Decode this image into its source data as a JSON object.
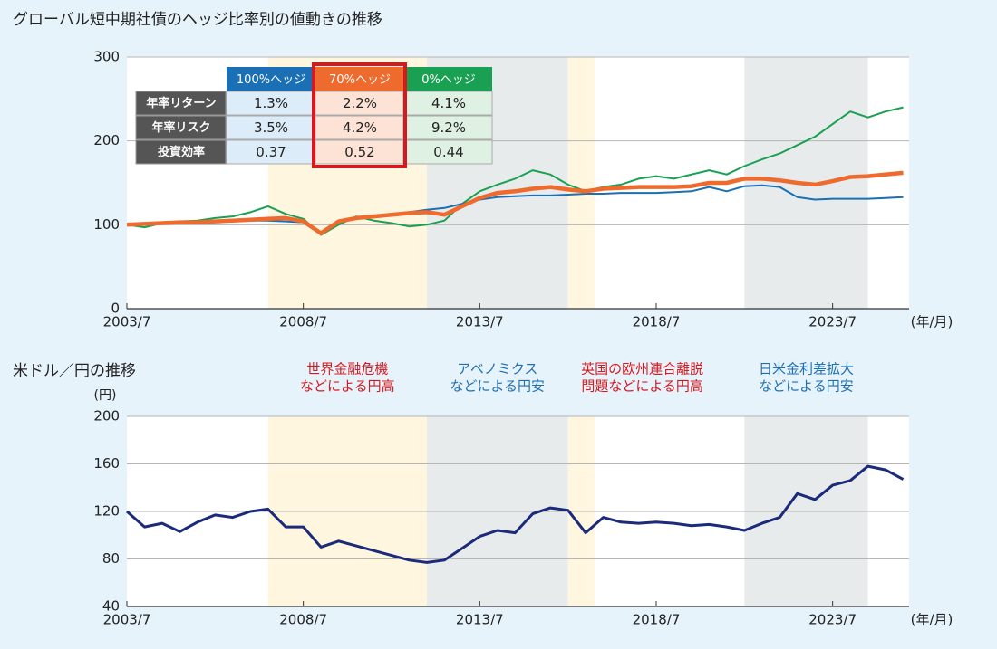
{
  "chart_data": [
    {
      "type": "line",
      "title": "グローバル短中期社債のヘッジ比率別の値動きの推移",
      "x": [
        "2003/7",
        "2004/1",
        "2004/7",
        "2005/1",
        "2005/7",
        "2006/1",
        "2006/7",
        "2007/1",
        "2007/7",
        "2008/1",
        "2008/7",
        "2009/1",
        "2009/7",
        "2010/1",
        "2010/7",
        "2011/1",
        "2011/7",
        "2012/1",
        "2012/7",
        "2013/1",
        "2013/7",
        "2014/1",
        "2014/7",
        "2015/1",
        "2015/7",
        "2016/1",
        "2016/7",
        "2017/1",
        "2017/7",
        "2018/1",
        "2018/7",
        "2019/1",
        "2019/7",
        "2020/1",
        "2020/7",
        "2021/1",
        "2021/7",
        "2022/1",
        "2022/7",
        "2023/1",
        "2023/7",
        "2024/1",
        "2024/7",
        "2025/1",
        "2025/7"
      ],
      "xlim": [
        "2003/7",
        "2025/9"
      ],
      "xticks": [
        "2003/7",
        "2008/7",
        "2013/7",
        "2018/7",
        "2023/7"
      ],
      "x_unit": "(年/月)",
      "ylim": [
        0,
        300
      ],
      "yticks": [
        0,
        100,
        200,
        300
      ],
      "grid": true,
      "series": [
        {
          "name": "100%ヘッジ",
          "color": "#1a6fb5",
          "values": [
            100,
            101,
            102,
            103,
            103,
            104,
            104,
            105,
            105,
            104,
            103,
            90,
            105,
            108,
            110,
            113,
            115,
            118,
            120,
            125,
            130,
            133,
            134,
            135,
            135,
            136,
            137,
            137,
            138,
            138,
            138,
            139,
            140,
            145,
            140,
            146,
            147,
            145,
            133,
            130,
            131,
            131,
            131,
            132,
            133
          ]
        },
        {
          "name": "70%ヘッジ",
          "color": "#ee6a2d",
          "values": [
            100,
            101,
            102,
            103,
            103,
            104,
            105,
            106,
            107,
            108,
            104,
            90,
            104,
            108,
            110,
            112,
            114,
            115,
            112,
            122,
            132,
            138,
            140,
            143,
            145,
            142,
            140,
            143,
            144,
            145,
            145,
            145,
            146,
            150,
            150,
            155,
            155,
            153,
            150,
            148,
            152,
            157,
            158,
            160,
            162
          ]
        },
        {
          "name": "0%ヘッジ",
          "color": "#1aa053",
          "values": [
            100,
            97,
            102,
            104,
            105,
            108,
            110,
            115,
            122,
            113,
            107,
            88,
            100,
            110,
            105,
            102,
            98,
            100,
            105,
            125,
            140,
            148,
            155,
            165,
            160,
            148,
            140,
            145,
            148,
            155,
            158,
            155,
            160,
            165,
            160,
            170,
            178,
            185,
            195,
            205,
            220,
            235,
            228,
            235,
            240
          ]
        }
      ],
      "table": {
        "rows": [
          {
            "label": "年率リターン",
            "cells": [
              "1.3%",
              "2.2%",
              "4.1%"
            ]
          },
          {
            "label": "年率リスク",
            "cells": [
              "3.5%",
              "4.2%",
              "9.2%"
            ]
          },
          {
            "label": "投資効率",
            "cells": [
              "0.37",
              "0.52",
              "0.44"
            ]
          }
        ]
      },
      "periods": [
        {
          "start": "2007/7",
          "end": "2012/1",
          "color": "#fef6df",
          "label_color": "#d7191f",
          "label": [
            "世界金融危機",
            "などによる円高"
          ]
        },
        {
          "start": "2012/1",
          "end": "2016/1",
          "color": "#e8ebec",
          "label_color": "#1f6fb5",
          "label": [
            "アベノミクス",
            "などによる円安"
          ]
        },
        {
          "start": "2016/1",
          "end": "2016/10",
          "color": "#fef6df",
          "label_color": "#d7191f",
          "label": [
            "英国の欧州連合離脱",
            "問題などによる円高"
          ]
        },
        {
          "start": "2021/1",
          "end": "2024/7",
          "color": "#e8ebec",
          "label_color": "#1f6fb5",
          "label": [
            "日米金利差拡大",
            "などによる円安"
          ]
        }
      ]
    },
    {
      "type": "line",
      "title": "米ドル／円の推移",
      "y_unit": "(円)",
      "x": [
        "2003/7",
        "2004/1",
        "2004/7",
        "2005/1",
        "2005/7",
        "2006/1",
        "2006/7",
        "2007/1",
        "2007/7",
        "2008/1",
        "2008/7",
        "2009/1",
        "2009/7",
        "2010/1",
        "2010/7",
        "2011/1",
        "2011/7",
        "2012/1",
        "2012/7",
        "2013/1",
        "2013/7",
        "2014/1",
        "2014/7",
        "2015/1",
        "2015/7",
        "2016/1",
        "2016/7",
        "2017/1",
        "2017/7",
        "2018/1",
        "2018/7",
        "2019/1",
        "2019/7",
        "2020/1",
        "2020/7",
        "2021/1",
        "2021/7",
        "2022/1",
        "2022/7",
        "2023/1",
        "2023/7",
        "2024/1",
        "2024/7",
        "2025/1",
        "2025/7"
      ],
      "xlim": [
        "2003/7",
        "2025/9"
      ],
      "xticks": [
        "2003/7",
        "2008/7",
        "2013/7",
        "2018/7",
        "2023/7"
      ],
      "x_unit": "(年/月)",
      "ylim": [
        40,
        200
      ],
      "yticks": [
        40,
        80,
        120,
        160,
        200
      ],
      "grid": true,
      "color": "#1b2a7a",
      "values": [
        120,
        107,
        110,
        103,
        111,
        117,
        115,
        120,
        122,
        107,
        107,
        90,
        95,
        91,
        87,
        83,
        79,
        77,
        79,
        89,
        99,
        104,
        102,
        118,
        123,
        121,
        102,
        115,
        111,
        110,
        111,
        110,
        108,
        109,
        107,
        104,
        110,
        115,
        135,
        130,
        142,
        146,
        158,
        155,
        147
      ]
    }
  ]
}
